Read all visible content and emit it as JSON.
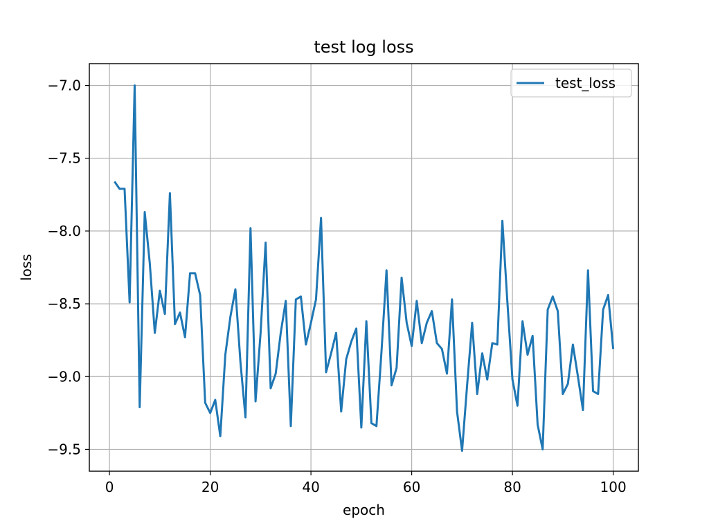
{
  "chart_data": {
    "type": "line",
    "title": "test log loss",
    "xlabel": "epoch",
    "ylabel": "loss",
    "xlim": [
      -4,
      105
    ],
    "ylim": [
      -9.65,
      -6.85
    ],
    "xticks": [
      0,
      20,
      40,
      60,
      80,
      100
    ],
    "yticks": [
      -7.0,
      -7.5,
      -8.0,
      -8.5,
      -9.0,
      -9.5
    ],
    "xtick_labels": [
      "0",
      "20",
      "40",
      "60",
      "80",
      "100"
    ],
    "ytick_labels": [
      "−7.0",
      "−7.5",
      "−8.0",
      "−8.5",
      "−9.0",
      "−9.5"
    ],
    "grid": true,
    "legend_position": "top-right",
    "series": [
      {
        "name": "test_loss",
        "color": "#1f77b4",
        "x": [
          1,
          2,
          3,
          4,
          5,
          6,
          7,
          8,
          9,
          10,
          11,
          12,
          13,
          14,
          15,
          16,
          17,
          18,
          19,
          20,
          21,
          22,
          23,
          24,
          25,
          26,
          27,
          28,
          29,
          30,
          31,
          32,
          33,
          34,
          35,
          36,
          37,
          38,
          39,
          40,
          41,
          42,
          43,
          44,
          45,
          46,
          47,
          48,
          49,
          50,
          51,
          52,
          53,
          54,
          55,
          56,
          57,
          58,
          59,
          60,
          61,
          62,
          63,
          64,
          65,
          66,
          67,
          68,
          69,
          70,
          71,
          72,
          73,
          74,
          75,
          76,
          77,
          78,
          79,
          80,
          81,
          82,
          83,
          84,
          85,
          86,
          87,
          88,
          89,
          90,
          91,
          92,
          93,
          94,
          95,
          96,
          97,
          98,
          99,
          100
        ],
        "y": [
          -7.66,
          -7.71,
          -7.71,
          -8.49,
          -7.0,
          -9.21,
          -7.87,
          -8.22,
          -8.7,
          -8.41,
          -8.57,
          -7.74,
          -8.64,
          -8.56,
          -8.73,
          -8.29,
          -8.29,
          -8.44,
          -9.18,
          -9.25,
          -9.16,
          -9.41,
          -8.85,
          -8.59,
          -8.4,
          -8.9,
          -9.28,
          -7.98,
          -9.17,
          -8.7,
          -8.08,
          -9.08,
          -8.98,
          -8.7,
          -8.48,
          -9.34,
          -8.47,
          -8.45,
          -8.78,
          -8.63,
          -8.47,
          -7.91,
          -8.97,
          -8.84,
          -8.7,
          -9.24,
          -8.88,
          -8.76,
          -8.67,
          -9.35,
          -8.62,
          -9.32,
          -9.34,
          -8.83,
          -8.27,
          -9.06,
          -8.94,
          -8.32,
          -8.63,
          -8.79,
          -8.48,
          -8.77,
          -8.63,
          -8.55,
          -8.77,
          -8.81,
          -8.98,
          -8.47,
          -9.24,
          -9.51,
          -9.06,
          -8.63,
          -9.12,
          -8.84,
          -9.02,
          -8.77,
          -8.78,
          -7.93,
          -8.49,
          -9.02,
          -9.2,
          -8.62,
          -8.85,
          -8.72,
          -9.33,
          -9.5,
          -8.54,
          -8.45,
          -8.55,
          -9.12,
          -9.05,
          -8.78,
          -9.0,
          -9.23,
          -8.27,
          -9.1,
          -9.12,
          -8.54,
          -8.44,
          -8.81
        ]
      }
    ]
  }
}
